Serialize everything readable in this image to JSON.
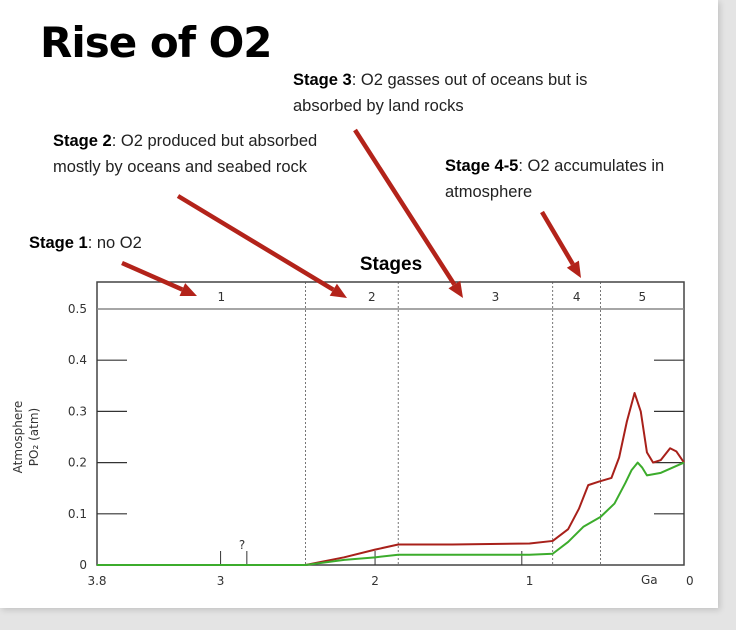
{
  "slide": {
    "title": "Rise of O2",
    "annotations": [
      {
        "label": "Stage 1",
        "text": ": no O2"
      },
      {
        "label": "Stage 2",
        "text": ": O2 produced but absorbed mostly by oceans and seabed rock"
      },
      {
        "label": "Stage 3",
        "text": ": O2 gasses out of oceans but is absorbed by land rocks"
      },
      {
        "label": "Stage 4-5",
        "text": ": O2 accumulates in atmosphere"
      }
    ],
    "arrow_color": "#b3231a"
  },
  "chart_data": {
    "type": "line",
    "title": "Stages",
    "xlabel": "Ga",
    "ylabel": "Atmosphere P O2 (atm)",
    "ylabel_line1": "Atmosphere",
    "ylabel_line2": "PO₂ (atm)",
    "xlim": [
      3.8,
      0
    ],
    "ylim": [
      0,
      0.5
    ],
    "x_ticks": [
      "3.8",
      "3",
      "2",
      "1",
      "0"
    ],
    "y_ticks": [
      "0",
      "0.1",
      "0.2",
      "0.3",
      "0.4",
      "0.5"
    ],
    "uncertainty_mark": "?",
    "stages": [
      {
        "label": "1",
        "start": 3.8,
        "end": 2.45
      },
      {
        "label": "2",
        "start": 2.45,
        "end": 1.85
      },
      {
        "label": "3",
        "start": 1.85,
        "end": 0.85
      },
      {
        "label": "4",
        "start": 0.85,
        "end": 0.54
      },
      {
        "label": "5",
        "start": 0.54,
        "end": 0
      }
    ],
    "series": [
      {
        "color": "#a8201a",
        "points": [
          [
            3.8,
            0
          ],
          [
            2.45,
            0
          ],
          [
            2.2,
            0.015
          ],
          [
            2.0,
            0.03
          ],
          [
            1.85,
            0.04
          ],
          [
            1.5,
            0.04
          ],
          [
            1.0,
            0.042
          ],
          [
            0.85,
            0.047
          ],
          [
            0.75,
            0.07
          ],
          [
            0.68,
            0.11
          ],
          [
            0.62,
            0.156
          ],
          [
            0.55,
            0.163
          ],
          [
            0.47,
            0.17
          ],
          [
            0.42,
            0.21
          ],
          [
            0.37,
            0.28
          ],
          [
            0.32,
            0.336
          ],
          [
            0.28,
            0.3
          ],
          [
            0.24,
            0.22
          ],
          [
            0.2,
            0.2
          ],
          [
            0.15,
            0.205
          ],
          [
            0.09,
            0.228
          ],
          [
            0.05,
            0.222
          ],
          [
            0,
            0.2
          ]
        ]
      },
      {
        "color": "#3cac2c",
        "points": [
          [
            3.8,
            0
          ],
          [
            2.45,
            0
          ],
          [
            2.2,
            0.01
          ],
          [
            2.0,
            0.015
          ],
          [
            1.85,
            0.02
          ],
          [
            1.0,
            0.02
          ],
          [
            0.85,
            0.022
          ],
          [
            0.75,
            0.045
          ],
          [
            0.65,
            0.075
          ],
          [
            0.54,
            0.094
          ],
          [
            0.45,
            0.12
          ],
          [
            0.38,
            0.16
          ],
          [
            0.34,
            0.185
          ],
          [
            0.3,
            0.2
          ],
          [
            0.27,
            0.19
          ],
          [
            0.24,
            0.175
          ],
          [
            0.15,
            0.18
          ],
          [
            0,
            0.2
          ]
        ]
      }
    ]
  }
}
